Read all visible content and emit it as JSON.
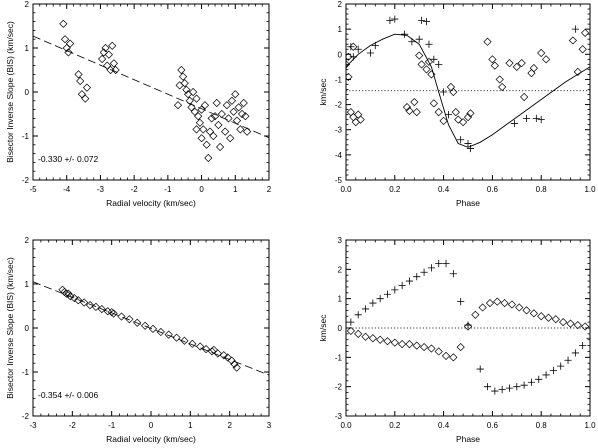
{
  "chart_data": [
    {
      "id": "top-left",
      "type": "scatter",
      "xlabel": "Radial velocity (km/sec)",
      "ylabel": "Bisector Inverse Slope (BIS) (km/sec)",
      "xlim": [
        -5,
        2
      ],
      "ylim": [
        -2,
        2
      ],
      "xticks": [
        -5,
        -4,
        -3,
        -2,
        -1,
        0,
        1,
        2
      ],
      "yticks": [
        -2,
        -1,
        0,
        1,
        2
      ],
      "annotation": "-0.330 +/- 0.072",
      "fit_line": {
        "style": "dashed",
        "x": [
          -5,
          2
        ],
        "y": [
          1.27,
          -1.04
        ]
      },
      "series": [
        {
          "marker": "diamond",
          "points": [
            [
              -4.1,
              1.55
            ],
            [
              -4.05,
              1.2
            ],
            [
              -4.0,
              1.0
            ],
            [
              -3.95,
              0.9
            ],
            [
              -3.9,
              1.1
            ],
            [
              -3.65,
              0.4
            ],
            [
              -3.6,
              0.25
            ],
            [
              -3.55,
              -0.05
            ],
            [
              -3.4,
              0.1
            ],
            [
              -3.45,
              -0.15
            ],
            [
              -2.95,
              0.75
            ],
            [
              -2.9,
              0.9
            ],
            [
              -2.85,
              1.0
            ],
            [
              -2.8,
              0.6
            ],
            [
              -2.75,
              0.85
            ],
            [
              -2.7,
              0.5
            ],
            [
              -2.65,
              1.05
            ],
            [
              -2.6,
              0.65
            ],
            [
              -2.55,
              0.5
            ],
            [
              -0.6,
              0.5
            ],
            [
              -0.55,
              0.35
            ],
            [
              -0.5,
              0.2
            ],
            [
              -0.45,
              0.05
            ],
            [
              -0.4,
              -0.05
            ],
            [
              -0.35,
              -0.2
            ],
            [
              -0.3,
              -0.35
            ],
            [
              -0.25,
              0.0
            ],
            [
              -0.2,
              -0.45
            ],
            [
              -0.15,
              -0.15
            ],
            [
              -0.1,
              -0.55
            ],
            [
              -0.05,
              -0.7
            ],
            [
              0.0,
              -0.4
            ],
            [
              0.05,
              -0.85
            ],
            [
              0.1,
              -0.3
            ],
            [
              0.15,
              -1.2
            ],
            [
              0.2,
              -1.5
            ],
            [
              0.25,
              -0.9
            ],
            [
              0.3,
              -0.6
            ],
            [
              0.35,
              -1.0
            ],
            [
              0.4,
              -0.55
            ],
            [
              0.45,
              -0.25
            ],
            [
              0.5,
              -0.75
            ],
            [
              0.6,
              -0.5
            ],
            [
              0.7,
              -0.9
            ],
            [
              0.75,
              -0.3
            ],
            [
              0.8,
              -0.6
            ],
            [
              0.85,
              -1.05
            ],
            [
              0.9,
              -0.2
            ],
            [
              0.95,
              -0.45
            ],
            [
              1.0,
              -0.05
            ],
            [
              1.05,
              -0.65
            ],
            [
              1.1,
              -0.35
            ],
            [
              1.15,
              -0.85
            ],
            [
              1.2,
              -0.5
            ],
            [
              1.25,
              -0.25
            ],
            [
              1.3,
              -0.55
            ],
            [
              1.35,
              -0.9
            ],
            [
              -0.7,
              -0.3
            ],
            [
              -0.65,
              0.15
            ],
            [
              0.55,
              -1.25
            ],
            [
              0.0,
              -1.05
            ],
            [
              -0.15,
              -0.85
            ]
          ]
        }
      ]
    },
    {
      "id": "top-right",
      "type": "scatter",
      "xlabel": "Phase",
      "ylabel": "km/sec",
      "xlim": [
        0,
        1
      ],
      "ylim": [
        -5,
        2
      ],
      "xticks": [
        0.0,
        0.2,
        0.4,
        0.6,
        0.8,
        1.0
      ],
      "yticks": [
        -5,
        -4,
        -3,
        -2,
        -1,
        0,
        1,
        2
      ],
      "reference_line": {
        "style": "dotted",
        "y": -1.45
      },
      "curve": {
        "style": "solid",
        "x": [
          0.0,
          0.05,
          0.1,
          0.15,
          0.2,
          0.25,
          0.3,
          0.35,
          0.38,
          0.42,
          0.46,
          0.5,
          0.55,
          0.6,
          0.7,
          0.8,
          0.9,
          1.0
        ],
        "y": [
          -0.5,
          0.0,
          0.35,
          0.6,
          0.8,
          0.75,
          0.4,
          -0.5,
          -1.5,
          -2.8,
          -3.55,
          -3.7,
          -3.5,
          -3.2,
          -2.5,
          -1.8,
          -1.1,
          -0.5
        ]
      },
      "series": [
        {
          "marker": "plus",
          "points": [
            [
              0.0,
              -0.2
            ],
            [
              0.02,
              0.3
            ],
            [
              0.03,
              -0.1
            ],
            [
              0.05,
              0.2
            ],
            [
              0.1,
              0.05
            ],
            [
              0.12,
              0.35
            ],
            [
              0.18,
              1.35
            ],
            [
              0.2,
              1.4
            ],
            [
              0.24,
              0.8
            ],
            [
              0.27,
              0.5
            ],
            [
              0.3,
              0.6
            ],
            [
              0.31,
              1.35
            ],
            [
              0.33,
              1.3
            ],
            [
              0.34,
              0.4
            ],
            [
              0.36,
              -0.2
            ],
            [
              0.38,
              -0.4
            ],
            [
              0.4,
              -1.5
            ],
            [
              0.42,
              -2.4
            ],
            [
              0.47,
              -3.4
            ],
            [
              0.5,
              -3.55
            ],
            [
              0.51,
              -3.75
            ],
            [
              0.69,
              -2.75
            ],
            [
              0.74,
              -2.55
            ],
            [
              0.78,
              -2.55
            ],
            [
              0.8,
              -2.6
            ],
            [
              0.94,
              1.0
            ]
          ]
        },
        {
          "marker": "diamond",
          "points": [
            [
              0.0,
              -0.4
            ],
            [
              0.01,
              -0.9
            ],
            [
              0.02,
              -2.3
            ],
            [
              0.03,
              -2.5
            ],
            [
              0.04,
              -2.7
            ],
            [
              0.05,
              -2.4
            ],
            [
              0.06,
              -2.6
            ],
            [
              0.01,
              -0.1
            ],
            [
              0.03,
              0.3
            ],
            [
              0.25,
              -2.1
            ],
            [
              0.26,
              -2.25
            ],
            [
              0.28,
              -1.9
            ],
            [
              0.29,
              -2.3
            ],
            [
              0.3,
              -0.05
            ],
            [
              0.31,
              -0.4
            ],
            [
              0.33,
              -0.6
            ],
            [
              0.34,
              -0.3
            ],
            [
              0.35,
              -0.8
            ],
            [
              0.36,
              -1.95
            ],
            [
              0.38,
              -2.3
            ],
            [
              0.4,
              -2.65
            ],
            [
              0.43,
              -1.3
            ],
            [
              0.44,
              -1.5
            ],
            [
              0.45,
              -2.3
            ],
            [
              0.46,
              -2.6
            ],
            [
              0.48,
              -2.7
            ],
            [
              0.5,
              -2.5
            ],
            [
              0.51,
              -2.35
            ],
            [
              0.58,
              0.5
            ],
            [
              0.6,
              -0.2
            ],
            [
              0.61,
              -0.45
            ],
            [
              0.63,
              -1.0
            ],
            [
              0.64,
              -1.3
            ],
            [
              0.67,
              -0.35
            ],
            [
              0.7,
              -0.5
            ],
            [
              0.72,
              -0.35
            ],
            [
              0.73,
              -1.7
            ],
            [
              0.76,
              -0.75
            ],
            [
              0.77,
              -0.55
            ],
            [
              0.8,
              0.05
            ],
            [
              0.82,
              -0.2
            ],
            [
              0.93,
              0.55
            ],
            [
              0.95,
              -0.7
            ],
            [
              0.97,
              0.2
            ],
            [
              0.98,
              0.85
            ]
          ]
        }
      ]
    },
    {
      "id": "bottom-left",
      "type": "scatter",
      "xlabel": "Radial velocity (km/sec)",
      "ylabel": "Bisector Inverse Slope (BIS) (km/sec)",
      "xlim": [
        -3,
        3
      ],
      "ylim": [
        -2,
        2
      ],
      "xticks": [
        -3,
        -2,
        -1,
        0,
        1,
        2,
        3
      ],
      "yticks": [
        -2,
        -1,
        0,
        1,
        2
      ],
      "annotation": "-0.354 +/- 0.006",
      "fit_line": {
        "style": "dashed",
        "x": [
          -3,
          3
        ],
        "y": [
          1.05,
          -1.07
        ]
      },
      "series": [
        {
          "marker": "diamond",
          "points": [
            [
              -2.25,
              0.87
            ],
            [
              -2.2,
              0.82
            ],
            [
              -2.15,
              0.78
            ],
            [
              -2.05,
              0.72
            ],
            [
              -1.95,
              0.68
            ],
            [
              -1.85,
              0.63
            ],
            [
              -1.7,
              0.58
            ],
            [
              -1.55,
              0.52
            ],
            [
              -1.4,
              0.48
            ],
            [
              -1.25,
              0.43
            ],
            [
              -1.1,
              0.38
            ],
            [
              -0.95,
              0.33
            ],
            [
              -0.75,
              0.26
            ],
            [
              -0.55,
              0.2
            ],
            [
              -0.35,
              0.12
            ],
            [
              -0.15,
              0.05
            ],
            [
              0.05,
              -0.02
            ],
            [
              0.25,
              -0.09
            ],
            [
              0.45,
              -0.15
            ],
            [
              0.65,
              -0.22
            ],
            [
              0.85,
              -0.29
            ],
            [
              1.05,
              -0.36
            ],
            [
              1.25,
              -0.42
            ],
            [
              1.4,
              -0.48
            ],
            [
              1.55,
              -0.53
            ],
            [
              1.7,
              -0.58
            ],
            [
              1.85,
              -0.62
            ],
            [
              1.95,
              -0.67
            ],
            [
              2.05,
              -0.74
            ],
            [
              2.12,
              -0.82
            ],
            [
              2.18,
              -0.9
            ],
            [
              -2.1,
              0.78
            ],
            [
              1.6,
              -0.5
            ],
            [
              -1.0,
              0.36
            ]
          ]
        }
      ]
    },
    {
      "id": "bottom-right",
      "type": "scatter",
      "xlabel": "Phase",
      "ylabel": "km/sec",
      "xlim": [
        0,
        1
      ],
      "ylim": [
        -3,
        3
      ],
      "xticks": [
        0.0,
        0.2,
        0.4,
        0.6,
        0.8,
        1.0
      ],
      "yticks": [
        -3,
        -2,
        -1,
        0,
        1,
        2,
        3
      ],
      "reference_line": {
        "style": "dotted",
        "y": 0
      },
      "series": [
        {
          "marker": "plus",
          "points": [
            [
              0.02,
              0.2
            ],
            [
              0.05,
              0.45
            ],
            [
              0.08,
              0.65
            ],
            [
              0.11,
              0.85
            ],
            [
              0.14,
              1.0
            ],
            [
              0.17,
              1.15
            ],
            [
              0.2,
              1.3
            ],
            [
              0.23,
              1.45
            ],
            [
              0.26,
              1.6
            ],
            [
              0.29,
              1.75
            ],
            [
              0.32,
              1.9
            ],
            [
              0.35,
              2.05
            ],
            [
              0.38,
              2.2
            ],
            [
              0.41,
              2.2
            ],
            [
              0.44,
              1.85
            ],
            [
              0.47,
              0.9
            ],
            [
              0.5,
              0.1
            ],
            [
              0.55,
              -1.4
            ],
            [
              0.58,
              -2.0
            ],
            [
              0.61,
              -2.15
            ],
            [
              0.64,
              -2.1
            ],
            [
              0.67,
              -2.05
            ],
            [
              0.7,
              -2.0
            ],
            [
              0.73,
              -1.95
            ],
            [
              0.76,
              -1.85
            ],
            [
              0.79,
              -1.75
            ],
            [
              0.82,
              -1.6
            ],
            [
              0.85,
              -1.45
            ],
            [
              0.88,
              -1.3
            ],
            [
              0.91,
              -1.1
            ],
            [
              0.94,
              -0.85
            ],
            [
              0.97,
              -0.6
            ],
            [
              1.0,
              -0.35
            ]
          ]
        },
        {
          "marker": "diamond",
          "points": [
            [
              0.02,
              -0.1
            ],
            [
              0.05,
              -0.2
            ],
            [
              0.08,
              -0.3
            ],
            [
              0.11,
              -0.35
            ],
            [
              0.14,
              -0.4
            ],
            [
              0.17,
              -0.45
            ],
            [
              0.2,
              -0.5
            ],
            [
              0.23,
              -0.55
            ],
            [
              0.26,
              -0.55
            ],
            [
              0.29,
              -0.6
            ],
            [
              0.32,
              -0.65
            ],
            [
              0.35,
              -0.7
            ],
            [
              0.38,
              -0.8
            ],
            [
              0.41,
              -0.95
            ],
            [
              0.44,
              -1.0
            ],
            [
              0.47,
              -0.65
            ],
            [
              0.5,
              0.05
            ],
            [
              0.53,
              0.45
            ],
            [
              0.56,
              0.7
            ],
            [
              0.59,
              0.85
            ],
            [
              0.62,
              0.9
            ],
            [
              0.65,
              0.85
            ],
            [
              0.68,
              0.8
            ],
            [
              0.71,
              0.7
            ],
            [
              0.74,
              0.6
            ],
            [
              0.77,
              0.5
            ],
            [
              0.8,
              0.4
            ],
            [
              0.83,
              0.35
            ],
            [
              0.86,
              0.3
            ],
            [
              0.89,
              0.2
            ],
            [
              0.92,
              0.15
            ],
            [
              0.95,
              0.1
            ],
            [
              0.98,
              0.05
            ]
          ]
        }
      ]
    }
  ]
}
